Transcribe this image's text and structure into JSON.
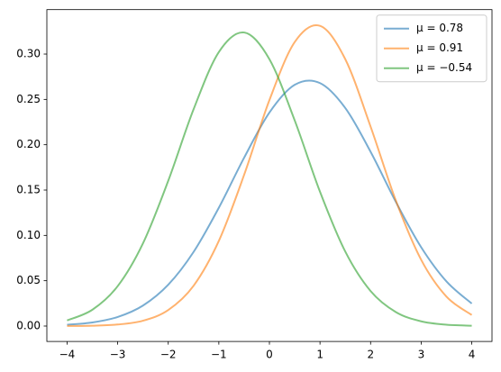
{
  "chart_data": {
    "type": "line",
    "x": [
      -4,
      -3.5,
      -3,
      -2.5,
      -2,
      -1.5,
      -1,
      -0.5,
      0,
      0.5,
      1,
      1.5,
      2,
      2.5,
      3,
      3.5,
      4
    ],
    "series": [
      {
        "name": "μ = 0.78",
        "color": "#1f77b4",
        "values": [
          0.0014,
          0.004,
          0.01,
          0.0226,
          0.0456,
          0.0817,
          0.1305,
          0.1857,
          0.2355,
          0.2661,
          0.268,
          0.2405,
          0.1922,
          0.1369,
          0.0869,
          0.0492,
          0.0248
        ]
      },
      {
        "name": "μ = 0.91",
        "color": "#ff7f0e",
        "values": [
          0.0001,
          0.0004,
          0.0017,
          0.0059,
          0.0177,
          0.0444,
          0.0939,
          0.1668,
          0.2492,
          0.3132,
          0.3311,
          0.2943,
          0.22,
          0.1383,
          0.0731,
          0.0325,
          0.0122
        ]
      },
      {
        "name": "μ = −0.54",
        "color": "#2ca02c",
        "values": [
          0.0062,
          0.018,
          0.044,
          0.0912,
          0.1603,
          0.239,
          0.3022,
          0.3238,
          0.2943,
          0.2268,
          0.1481,
          0.0821,
          0.0386,
          0.0154,
          0.0052,
          0.0015,
          0.0004
        ]
      }
    ],
    "xlim": [
      -4.4,
      4.4
    ],
    "ylim": [
      -0.017,
      0.349
    ],
    "xticks": [
      {
        "value": -4,
        "label": "−4"
      },
      {
        "value": -3,
        "label": "−3"
      },
      {
        "value": -2,
        "label": "−2"
      },
      {
        "value": -1,
        "label": "−1"
      },
      0,
      1,
      2,
      3,
      4
    ],
    "yticks": [
      {
        "value": 0,
        "label": "0.00"
      },
      {
        "value": 0.05,
        "label": "0.05"
      },
      {
        "value": 0.1,
        "label": "0.10"
      },
      {
        "value": 0.15,
        "label": "0.15"
      },
      {
        "value": 0.2,
        "label": "0.20"
      },
      {
        "value": 0.25,
        "label": "0.25"
      },
      {
        "value": 0.3,
        "label": "0.30"
      }
    ],
    "legend": "upper right",
    "grid": false
  }
}
